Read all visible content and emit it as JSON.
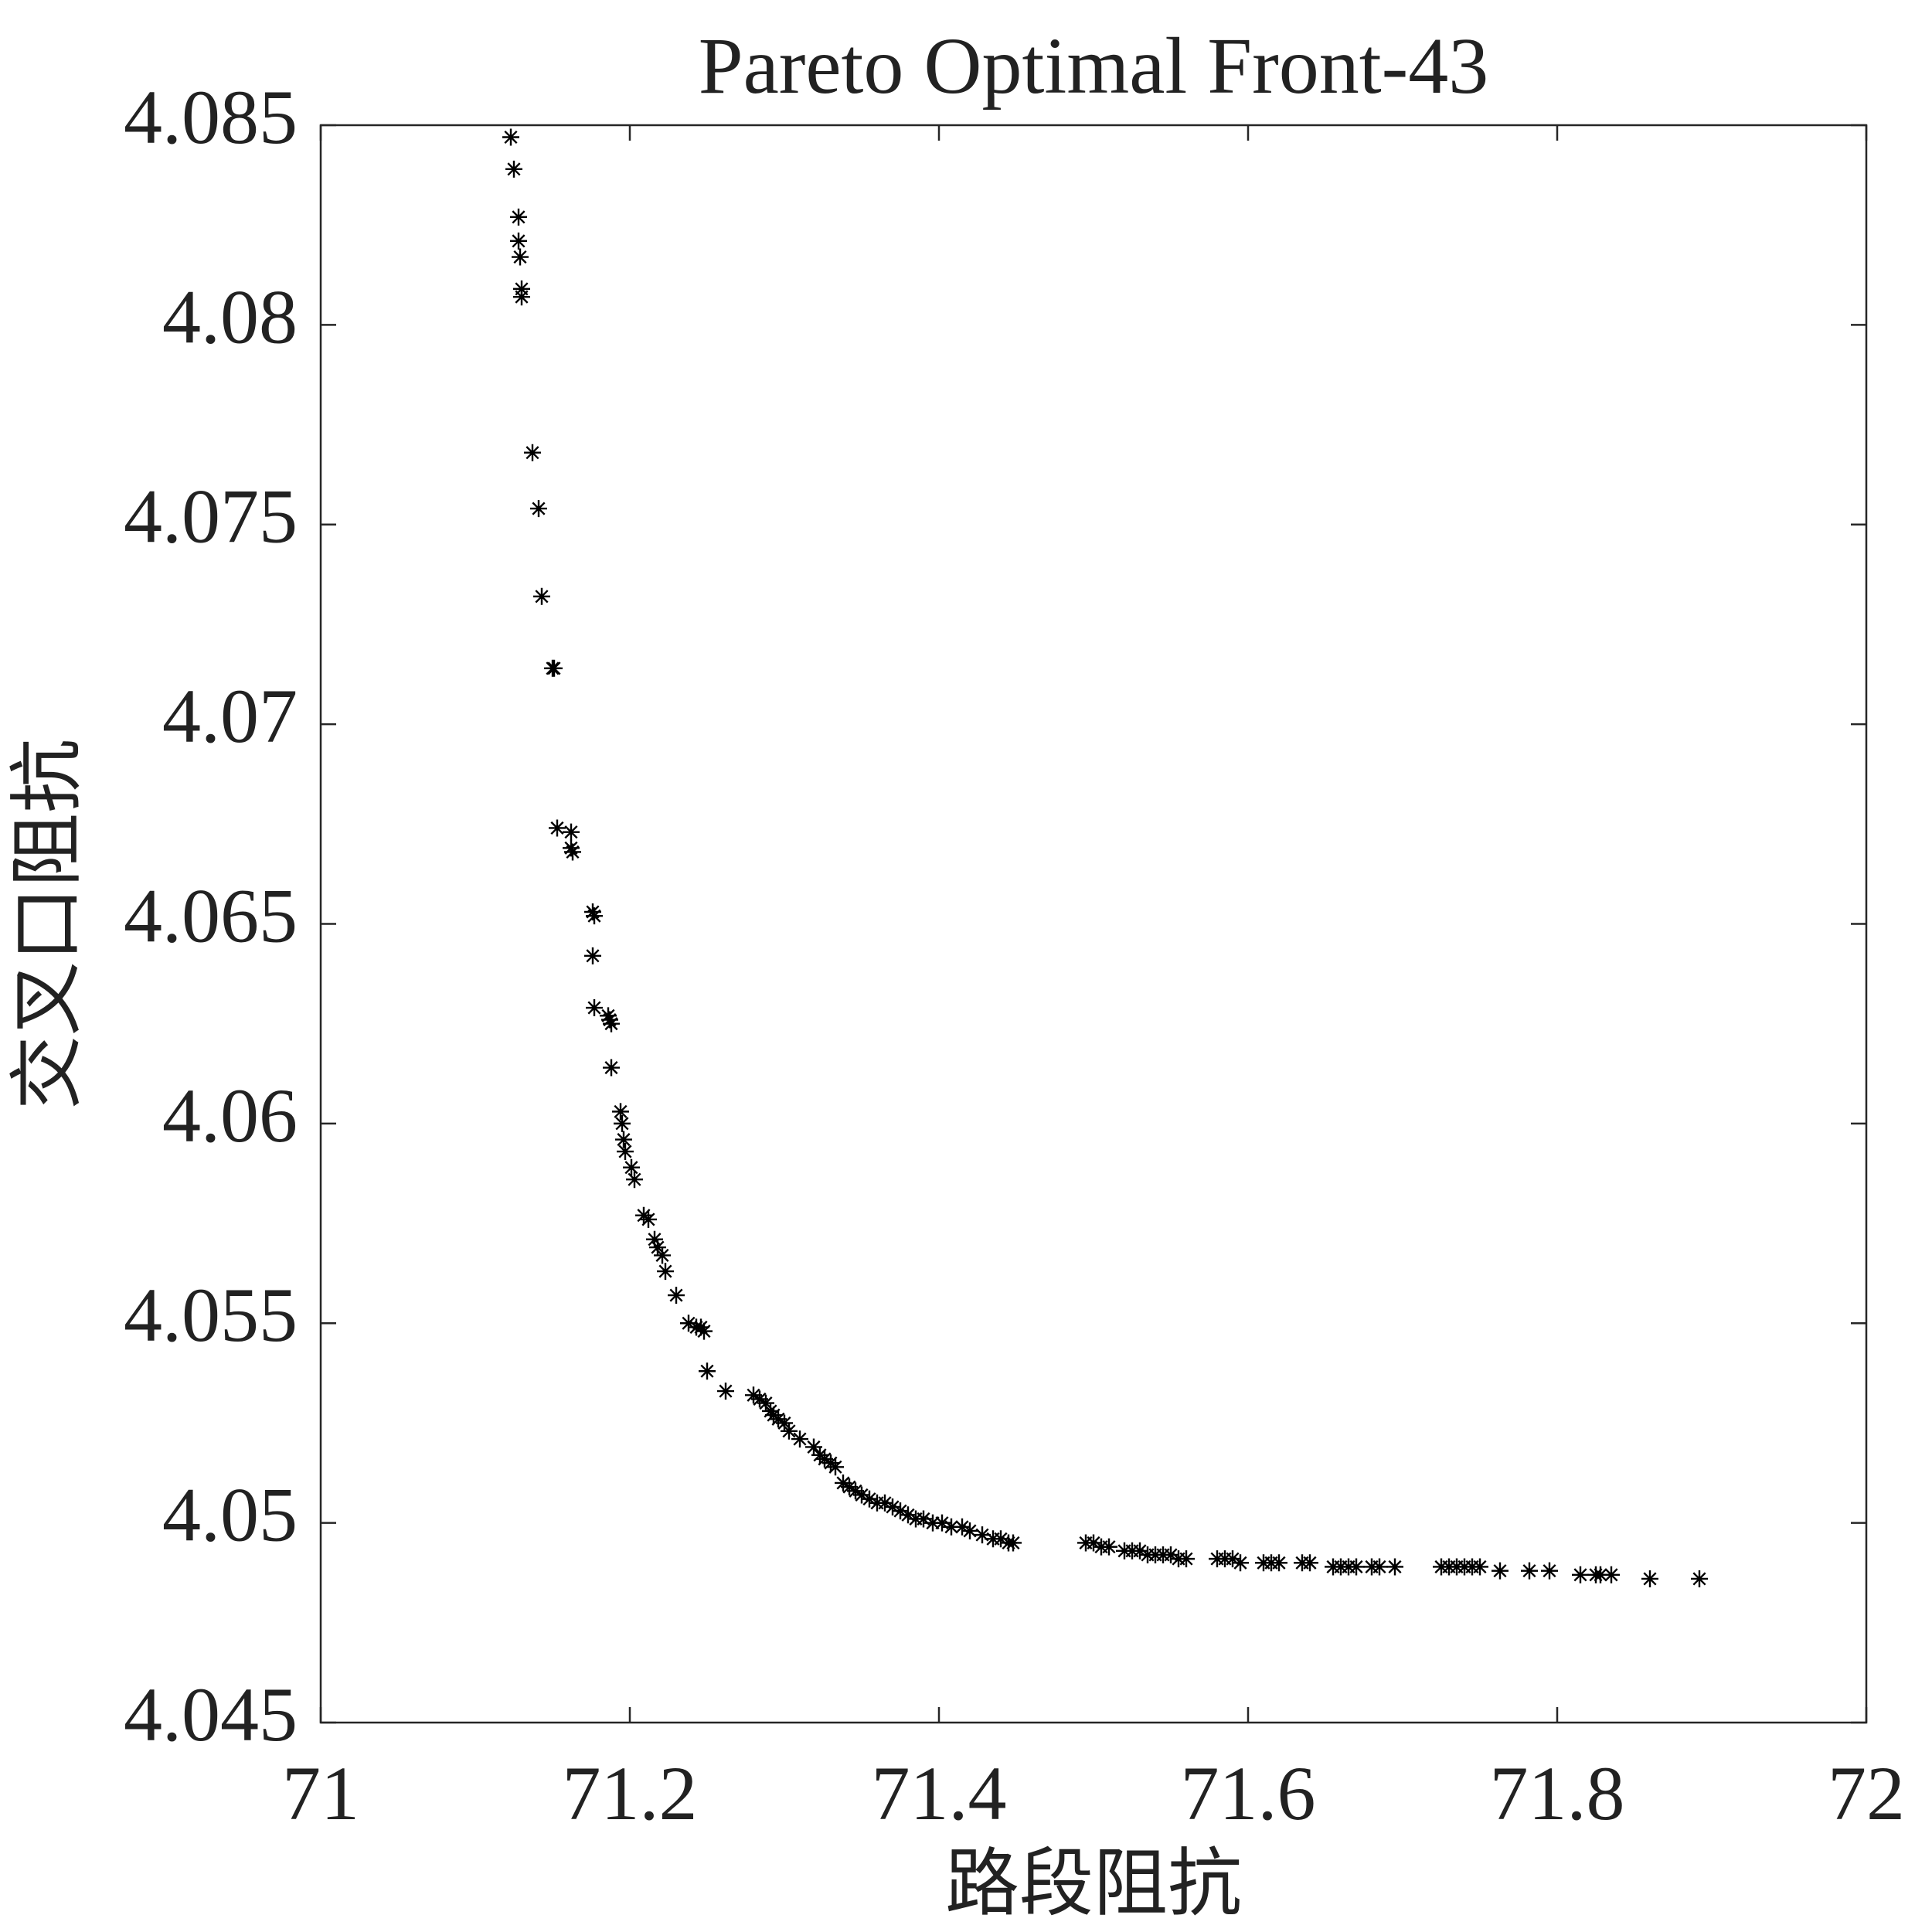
{
  "chart_data": {
    "type": "scatter",
    "title": "Pareto Optimal Front-43",
    "xlabel": "路段阻抗",
    "ylabel": "交叉口阻抗",
    "xlim": [
      71,
      72
    ],
    "ylim": [
      4.045,
      4.085
    ],
    "xticks": [
      71,
      71.2,
      71.4,
      71.6,
      71.8,
      72
    ],
    "yticks": [
      4.045,
      4.05,
      4.055,
      4.06,
      4.065,
      4.07,
      4.075,
      4.08,
      4.085
    ],
    "marker": "asterisk",
    "box": true,
    "series": [
      {
        "color": "#000000",
        "x": [
          71.123,
          71.125,
          71.128,
          71.128,
          71.129,
          71.13,
          71.13,
          71.137,
          71.141,
          71.143,
          71.15,
          71.151,
          71.153,
          71.162,
          71.162,
          71.163,
          71.176,
          71.177,
          71.176,
          71.177,
          71.186,
          71.187,
          71.188,
          71.188,
          71.194,
          71.195,
          71.196,
          71.197,
          71.201,
          71.203,
          71.209,
          71.212,
          71.216,
          71.218,
          71.221,
          71.223,
          71.23,
          71.238,
          71.243,
          71.246,
          71.248,
          71.25,
          71.262,
          71.28,
          71.284,
          71.288,
          71.291,
          71.293,
          71.296,
          71.3,
          71.303,
          71.31,
          71.319,
          71.323,
          71.326,
          71.33,
          71.333,
          71.338,
          71.342,
          71.346,
          71.35,
          71.355,
          71.36,
          71.365,
          71.37,
          71.375,
          71.38,
          71.385,
          71.39,
          71.396,
          71.402,
          71.408,
          71.415,
          71.42,
          71.428,
          71.435,
          71.44,
          71.445,
          71.448,
          71.495,
          71.5,
          71.505,
          71.51,
          71.52,
          71.525,
          71.53,
          71.535,
          71.54,
          71.545,
          71.55,
          71.555,
          71.56,
          71.58,
          71.585,
          71.59,
          71.595,
          71.61,
          71.615,
          71.62,
          71.635,
          71.64,
          71.655,
          71.66,
          71.665,
          71.67,
          71.68,
          71.685,
          71.695,
          71.725,
          71.73,
          71.735,
          71.74,
          71.745,
          71.75,
          71.763,
          71.782,
          71.795,
          71.815,
          71.825,
          71.828,
          71.835,
          71.86,
          71.892
        ],
        "values": [
          4.0847,
          4.0839,
          4.0827,
          4.0821,
          4.0817,
          4.0809,
          4.0807,
          4.0768,
          4.0754,
          4.0732,
          4.0714,
          4.0714,
          4.0674,
          4.0673,
          4.0669,
          4.0668,
          4.0653,
          4.0652,
          4.0642,
          4.0629,
          4.0627,
          4.0626,
          4.0625,
          4.0614,
          4.0603,
          4.06,
          4.0596,
          4.0593,
          4.0589,
          4.0586,
          4.0577,
          4.0576,
          4.0571,
          4.0569,
          4.0567,
          4.0563,
          4.0557,
          4.055,
          4.0549,
          4.0549,
          4.0548,
          4.0538,
          4.0533,
          4.0532,
          4.0531,
          4.053,
          4.0528,
          4.0527,
          4.0526,
          4.0525,
          4.0523,
          4.0521,
          4.0519,
          4.0517,
          4.0516,
          4.0515,
          4.0514,
          4.051,
          4.0509,
          4.0508,
          4.0507,
          4.0506,
          4.0505,
          4.0505,
          4.0504,
          4.0503,
          4.0502,
          4.0501,
          4.0501,
          4.05,
          4.05,
          4.0499,
          4.0499,
          4.0498,
          4.0497,
          4.0496,
          4.0496,
          4.0495,
          4.0495,
          4.0495,
          4.0495,
          4.0494,
          4.0494,
          4.0493,
          4.0493,
          4.0493,
          4.0492,
          4.0492,
          4.0492,
          4.0492,
          4.0491,
          4.0491,
          4.0491,
          4.0491,
          4.0491,
          4.049,
          4.049,
          4.049,
          4.049,
          4.049,
          4.049,
          4.0489,
          4.0489,
          4.0489,
          4.0489,
          4.0489,
          4.0489,
          4.0489,
          4.0489,
          4.0489,
          4.0489,
          4.0489,
          4.0489,
          4.0489,
          4.0488,
          4.0488,
          4.0488,
          4.0487,
          4.0487,
          4.0487,
          4.0487,
          4.0486,
          4.0486
        ]
      }
    ]
  }
}
